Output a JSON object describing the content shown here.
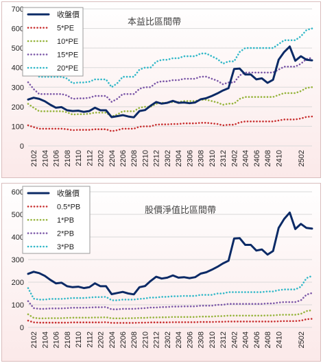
{
  "chart_data": [
    {
      "type": "line",
      "title": "本益比區間帶",
      "x": [
        "2101",
        "2102",
        "2103",
        "2104",
        "2105",
        "2106",
        "2107",
        "2108",
        "2109",
        "2110",
        "2111",
        "2112",
        "2201",
        "2202",
        "2203",
        "2204",
        "2205",
        "2206",
        "2207",
        "2208",
        "2209",
        "2210",
        "2211",
        "2212",
        "2301",
        "2302",
        "2303",
        "2304",
        "2305",
        "2306",
        "2307",
        "2308",
        "2309",
        "2310",
        "2311",
        "2312",
        "2401",
        "2402",
        "2403",
        "2404",
        "2405",
        "2406",
        "2407",
        "2408",
        "2409",
        "2410",
        "2411",
        "2412",
        "2501",
        "2502",
        "2503",
        "2504"
      ],
      "x_tick_labels": [
        "2102",
        "2104",
        "2106",
        "2108",
        "2110",
        "2112",
        "2202",
        "2204",
        "2206",
        "2208",
        "2210",
        "2212",
        "2302",
        "2304",
        "2306",
        "2308",
        "2310",
        "2312",
        "2402",
        "2404",
        "2406",
        "2408",
        "2410",
        "2502"
      ],
      "ylim": [
        0,
        700
      ],
      "y_ticks": [
        0,
        100,
        200,
        300,
        400,
        500,
        600,
        700
      ],
      "grid": "horizontal",
      "legend": "top-left",
      "series": [
        {
          "name": "收盤價",
          "color": "#0b2a66",
          "style": "solid",
          "values": [
            237,
            246,
            240,
            228,
            210,
            195,
            198,
            182,
            178,
            180,
            174,
            178,
            195,
            182,
            182,
            147,
            152,
            157,
            150,
            146,
            178,
            183,
            205,
            224,
            216,
            220,
            230,
            220,
            222,
            218,
            222,
            238,
            244,
            255,
            268,
            283,
            295,
            393,
            395,
            365,
            365,
            340,
            345,
            322,
            338,
            440,
            480,
            508,
            435,
            458,
            440,
            437
          ]
        },
        {
          "name": "5*PE",
          "color": "#c83030",
          "style": "dotted",
          "values": [
            105,
            96,
            88,
            88,
            88,
            88,
            88,
            85,
            80,
            82,
            82,
            82,
            85,
            85,
            85,
            75,
            80,
            88,
            88,
            88,
            98,
            100,
            100,
            108,
            110,
            110,
            112,
            112,
            115,
            115,
            115,
            118,
            118,
            115,
            112,
            105,
            108,
            108,
            120,
            125,
            125,
            125,
            125,
            125,
            125,
            130,
            135,
            135,
            135,
            140,
            148,
            150
          ]
        },
        {
          "name": "10*PE",
          "color": "#96b43c",
          "style": "dotted",
          "values": [
            215,
            195,
            177,
            177,
            177,
            177,
            177,
            172,
            160,
            162,
            162,
            164,
            170,
            170,
            170,
            150,
            160,
            177,
            177,
            177,
            195,
            200,
            200,
            215,
            220,
            220,
            224,
            224,
            229,
            229,
            229,
            236,
            236,
            229,
            222,
            210,
            216,
            216,
            240,
            250,
            250,
            250,
            250,
            250,
            250,
            260,
            270,
            270,
            270,
            280,
            296,
            300
          ]
        },
        {
          "name": "15*PE",
          "color": "#7c58a8",
          "style": "dotted",
          "values": [
            325,
            290,
            265,
            265,
            265,
            265,
            265,
            258,
            240,
            243,
            243,
            246,
            255,
            255,
            255,
            225,
            240,
            265,
            265,
            265,
            292,
            300,
            300,
            323,
            330,
            330,
            336,
            336,
            343,
            343,
            343,
            354,
            354,
            343,
            333,
            315,
            324,
            324,
            360,
            375,
            375,
            375,
            375,
            375,
            375,
            390,
            405,
            405,
            405,
            420,
            444,
            450
          ]
        },
        {
          "name": "20*PE",
          "color": "#32b8c8",
          "style": "dotted",
          "values": [
            430,
            388,
            353,
            353,
            353,
            353,
            353,
            344,
            320,
            324,
            324,
            328,
            340,
            340,
            340,
            300,
            320,
            353,
            353,
            353,
            390,
            400,
            400,
            430,
            440,
            440,
            448,
            448,
            458,
            458,
            458,
            472,
            472,
            458,
            444,
            420,
            432,
            432,
            480,
            500,
            500,
            500,
            500,
            500,
            500,
            520,
            540,
            540,
            540,
            560,
            592,
            600
          ]
        }
      ]
    },
    {
      "type": "line",
      "title": "股價淨值比區間帶",
      "x": [
        "2101",
        "2102",
        "2103",
        "2104",
        "2105",
        "2106",
        "2107",
        "2108",
        "2109",
        "2110",
        "2111",
        "2112",
        "2201",
        "2202",
        "2203",
        "2204",
        "2205",
        "2206",
        "2207",
        "2208",
        "2209",
        "2210",
        "2211",
        "2212",
        "2301",
        "2302",
        "2303",
        "2304",
        "2305",
        "2306",
        "2307",
        "2308",
        "2309",
        "2310",
        "2311",
        "2312",
        "2401",
        "2402",
        "2403",
        "2404",
        "2405",
        "2406",
        "2407",
        "2408",
        "2409",
        "2410",
        "2411",
        "2412",
        "2501",
        "2502",
        "2503",
        "2504"
      ],
      "x_tick_labels": [
        "2102",
        "2104",
        "2106",
        "2108",
        "2110",
        "2112",
        "2202",
        "2204",
        "2206",
        "2208",
        "2210",
        "2212",
        "2302",
        "2304",
        "2306",
        "2308",
        "2310",
        "2312",
        "2402",
        "2404",
        "2406",
        "2408",
        "2410",
        "2502"
      ],
      "ylim": [
        0,
        600
      ],
      "y_ticks": [
        0,
        100,
        200,
        300,
        400,
        500,
        600
      ],
      "grid": "horizontal",
      "legend": "top-left",
      "series": [
        {
          "name": "收盤價",
          "color": "#0b2a66",
          "style": "solid",
          "values": [
            237,
            246,
            240,
            228,
            210,
            195,
            198,
            182,
            178,
            180,
            174,
            178,
            195,
            182,
            182,
            147,
            152,
            157,
            150,
            146,
            178,
            183,
            205,
            224,
            216,
            220,
            230,
            220,
            222,
            218,
            222,
            238,
            244,
            255,
            268,
            283,
            295,
            393,
            395,
            365,
            365,
            340,
            345,
            322,
            338,
            440,
            480,
            508,
            435,
            458,
            440,
            437
          ]
        },
        {
          "name": "0.5*PB",
          "color": "#c83030",
          "style": "dotted",
          "values": [
            30,
            22,
            21,
            21,
            21,
            21,
            21,
            21,
            22,
            22,
            22,
            22,
            22,
            22,
            23,
            20,
            20,
            20,
            20,
            20,
            21,
            21,
            22,
            22,
            22,
            22,
            23,
            23,
            23,
            23,
            23,
            24,
            24,
            24,
            25,
            25,
            26,
            26,
            26,
            26,
            26,
            26,
            26,
            26,
            26,
            27,
            28,
            28,
            28,
            30,
            36,
            38
          ]
        },
        {
          "name": "1*PB",
          "color": "#96b43c",
          "style": "dotted",
          "values": [
            58,
            42,
            40,
            40,
            41,
            41,
            41,
            42,
            43,
            43,
            43,
            43,
            44,
            44,
            45,
            40,
            40,
            40,
            41,
            41,
            42,
            42,
            44,
            44,
            45,
            45,
            46,
            46,
            46,
            46,
            46,
            48,
            48,
            48,
            50,
            50,
            52,
            52,
            52,
            52,
            52,
            52,
            52,
            53,
            53,
            55,
            56,
            56,
            56,
            60,
            72,
            76
          ]
        },
        {
          "name": "2*PB",
          "color": "#7c58a8",
          "style": "dotted",
          "values": [
            116,
            85,
            82,
            82,
            84,
            84,
            84,
            85,
            87,
            87,
            87,
            88,
            89,
            89,
            90,
            80,
            80,
            82,
            82,
            82,
            84,
            85,
            88,
            88,
            90,
            90,
            92,
            92,
            93,
            93,
            93,
            96,
            96,
            96,
            100,
            100,
            104,
            104,
            104,
            104,
            104,
            104,
            104,
            106,
            106,
            110,
            112,
            112,
            112,
            120,
            145,
            152
          ]
        },
        {
          "name": "3*PB",
          "color": "#32b8c8",
          "style": "dotted",
          "values": [
            174,
            127,
            123,
            123,
            126,
            126,
            126,
            128,
            130,
            130,
            130,
            132,
            134,
            134,
            135,
            120,
            120,
            123,
            123,
            123,
            126,
            128,
            132,
            132,
            135,
            135,
            138,
            138,
            139,
            139,
            139,
            144,
            144,
            144,
            150,
            150,
            156,
            156,
            156,
            156,
            156,
            156,
            156,
            159,
            159,
            165,
            168,
            168,
            168,
            180,
            218,
            228
          ]
        }
      ]
    }
  ]
}
